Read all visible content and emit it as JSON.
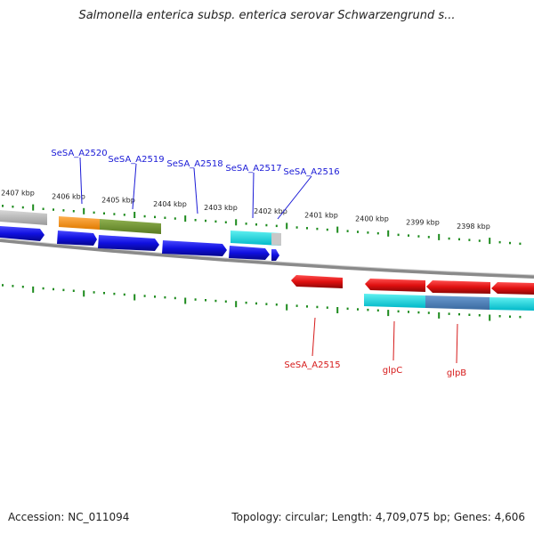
{
  "title": "Salmonella enterica subsp. enterica serovar Schwarzengrund s...",
  "footer": {
    "accession": "Accession: NC_011094",
    "topology": "Topology: circular; Length: 4,709,075 bp; Genes: 4,606"
  },
  "ruler_labels": [
    "2407 kbp",
    "2406 kbp",
    "2405 kbp",
    "2404 kbp",
    "2403 kbp",
    "2402 kbp",
    "2401 kbp",
    "2400 kbp",
    "2399 kbp",
    "2398 kbp"
  ],
  "genes_top": [
    "SeSA_A2520",
    "SeSA_A2519",
    "SeSA_A2518",
    "SeSA_A2517",
    "SeSA_A2516"
  ],
  "genes_bottom": [
    "SeSA_A2515",
    "glpC",
    "glpB"
  ],
  "colors": {
    "forward_gene": "#1010e0",
    "reverse_gene": "#e01010",
    "top_label": "#1a1ad6",
    "bottom_label": "#d61a1a",
    "tick": "#1c8a1c",
    "backbone": "#888888"
  }
}
